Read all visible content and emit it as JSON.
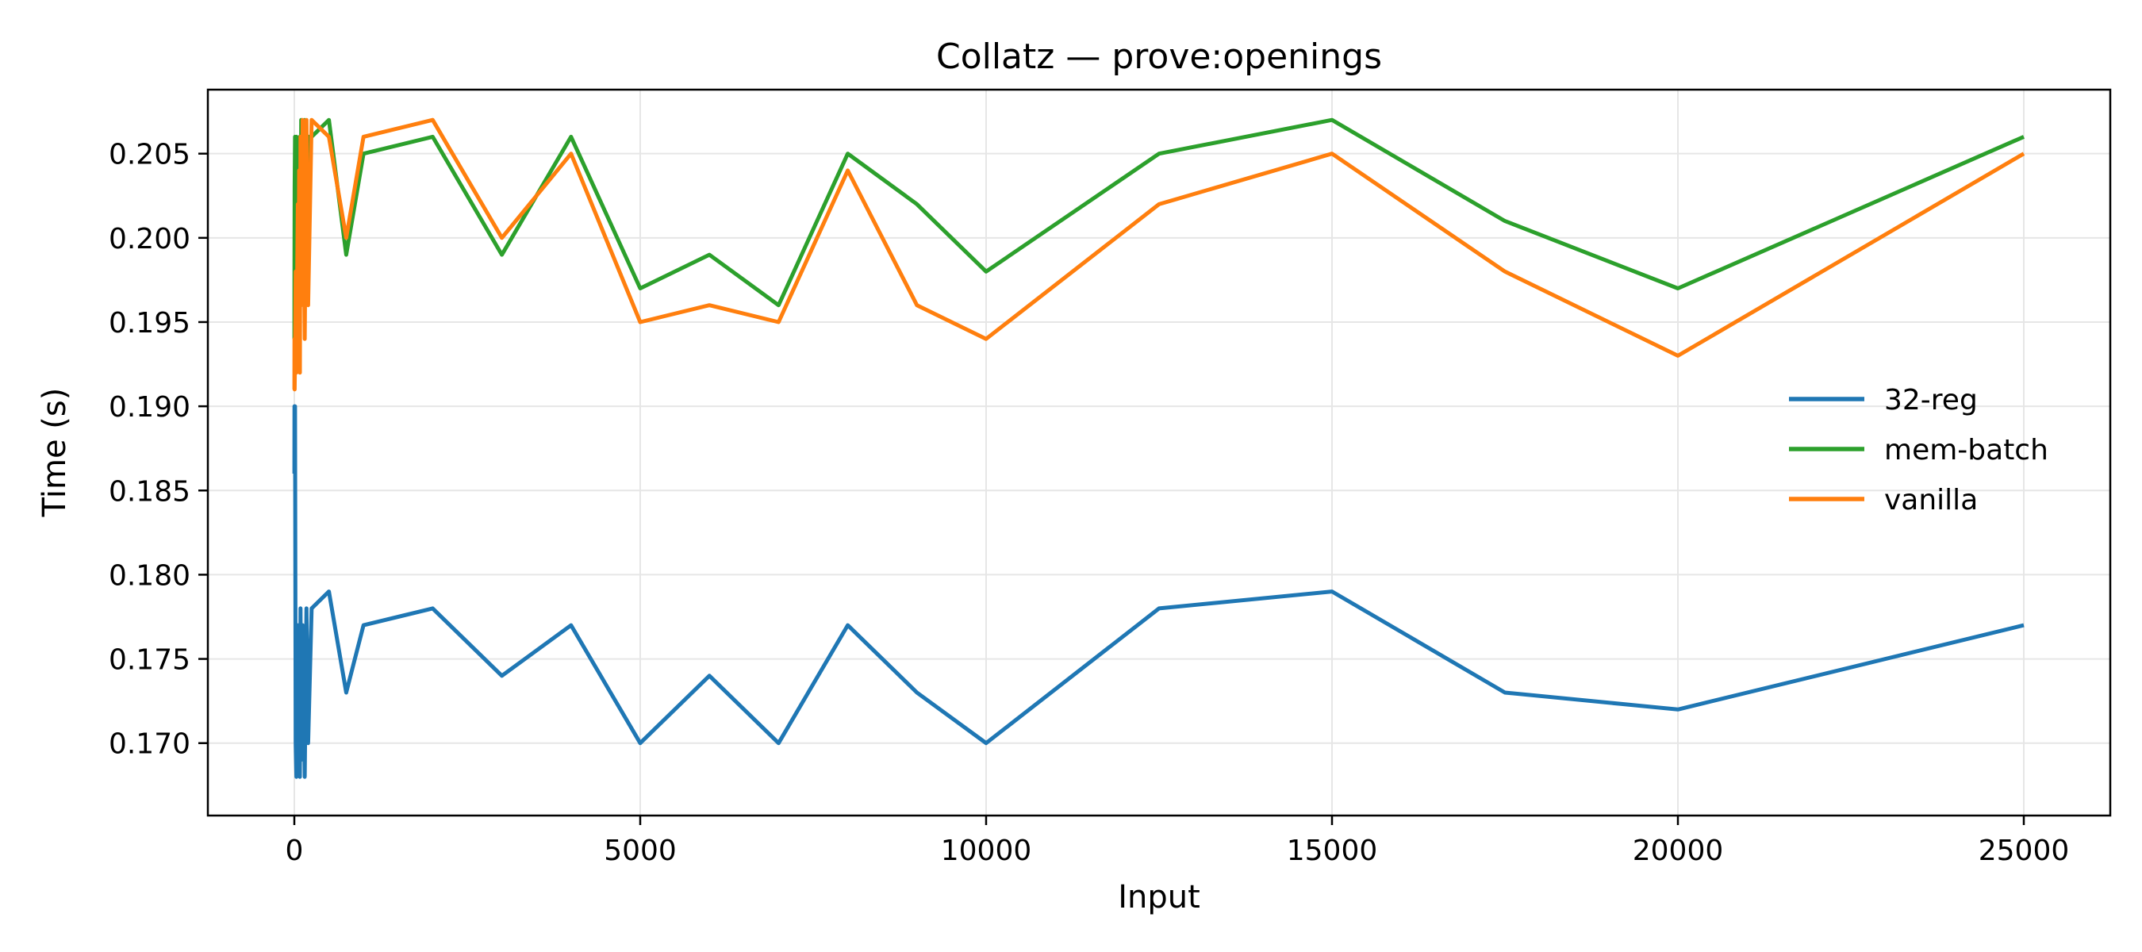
{
  "chart_data": {
    "type": "line",
    "title": "Collatz — prove:openings",
    "xlabel": "Input",
    "ylabel": "Time (s)",
    "xlim": [
      -1250,
      26250
    ],
    "ylim": [
      0.1657,
      0.2088
    ],
    "xticks": [
      0,
      5000,
      10000,
      15000,
      20000,
      25000
    ],
    "yticks": [
      0.17,
      0.175,
      0.18,
      0.185,
      0.19,
      0.195,
      0.2,
      0.205
    ],
    "xtick_labels": [
      "0",
      "5000",
      "10000",
      "15000",
      "20000",
      "25000"
    ],
    "ytick_labels": [
      "0.170",
      "0.175",
      "0.180",
      "0.185",
      "0.190",
      "0.195",
      "0.200",
      "0.205"
    ],
    "grid": true,
    "legend_position": "center-right",
    "series": [
      {
        "name": "32-reg",
        "color": "#1f77b4",
        "x": [
          1,
          2,
          5,
          10,
          20,
          30,
          50,
          60,
          70,
          80,
          90,
          100,
          120,
          150,
          175,
          200,
          250,
          500,
          750,
          1000,
          2000,
          3000,
          4000,
          5000,
          6000,
          7000,
          8000,
          9000,
          10000,
          12500,
          15000,
          17500,
          20000,
          25000
        ],
        "y": [
          0.186,
          0.19,
          0.188,
          0.19,
          0.17,
          0.168,
          0.177,
          0.169,
          0.177,
          0.168,
          0.178,
          0.169,
          0.177,
          0.168,
          0.178,
          0.17,
          0.178,
          0.179,
          0.173,
          0.177,
          0.178,
          0.174,
          0.177,
          0.17,
          0.174,
          0.17,
          0.177,
          0.173,
          0.17,
          0.178,
          0.179,
          0.173,
          0.172,
          0.177
        ]
      },
      {
        "name": "mem-batch",
        "color": "#2ca02c",
        "x": [
          1,
          2,
          5,
          10,
          20,
          30,
          50,
          60,
          70,
          80,
          90,
          100,
          120,
          150,
          175,
          200,
          250,
          500,
          750,
          1000,
          2000,
          3000,
          4000,
          5000,
          6000,
          7000,
          8000,
          9000,
          10000,
          12500,
          15000,
          17500,
          20000,
          25000
        ],
        "y": [
          0.194,
          0.198,
          0.203,
          0.206,
          0.198,
          0.206,
          0.202,
          0.205,
          0.198,
          0.206,
          0.197,
          0.207,
          0.198,
          0.207,
          0.197,
          0.206,
          0.206,
          0.207,
          0.199,
          0.205,
          0.206,
          0.199,
          0.206,
          0.197,
          0.199,
          0.196,
          0.205,
          0.202,
          0.198,
          0.205,
          0.207,
          0.201,
          0.197,
          0.206
        ]
      },
      {
        "name": "vanilla",
        "color": "#ff7f0e",
        "x": [
          1,
          2,
          5,
          10,
          20,
          30,
          50,
          60,
          70,
          80,
          90,
          100,
          120,
          150,
          175,
          200,
          250,
          500,
          750,
          1000,
          2000,
          3000,
          4000,
          5000,
          6000,
          7000,
          8000,
          9000,
          10000,
          12500,
          15000,
          17500,
          20000,
          25000
        ],
        "y": [
          0.191,
          0.194,
          0.191,
          0.193,
          0.198,
          0.192,
          0.202,
          0.195,
          0.204,
          0.192,
          0.206,
          0.196,
          0.207,
          0.194,
          0.207,
          0.196,
          0.207,
          0.206,
          0.2,
          0.206,
          0.207,
          0.2,
          0.205,
          0.195,
          0.196,
          0.195,
          0.204,
          0.196,
          0.194,
          0.202,
          0.205,
          0.198,
          0.193,
          0.205
        ]
      }
    ]
  }
}
